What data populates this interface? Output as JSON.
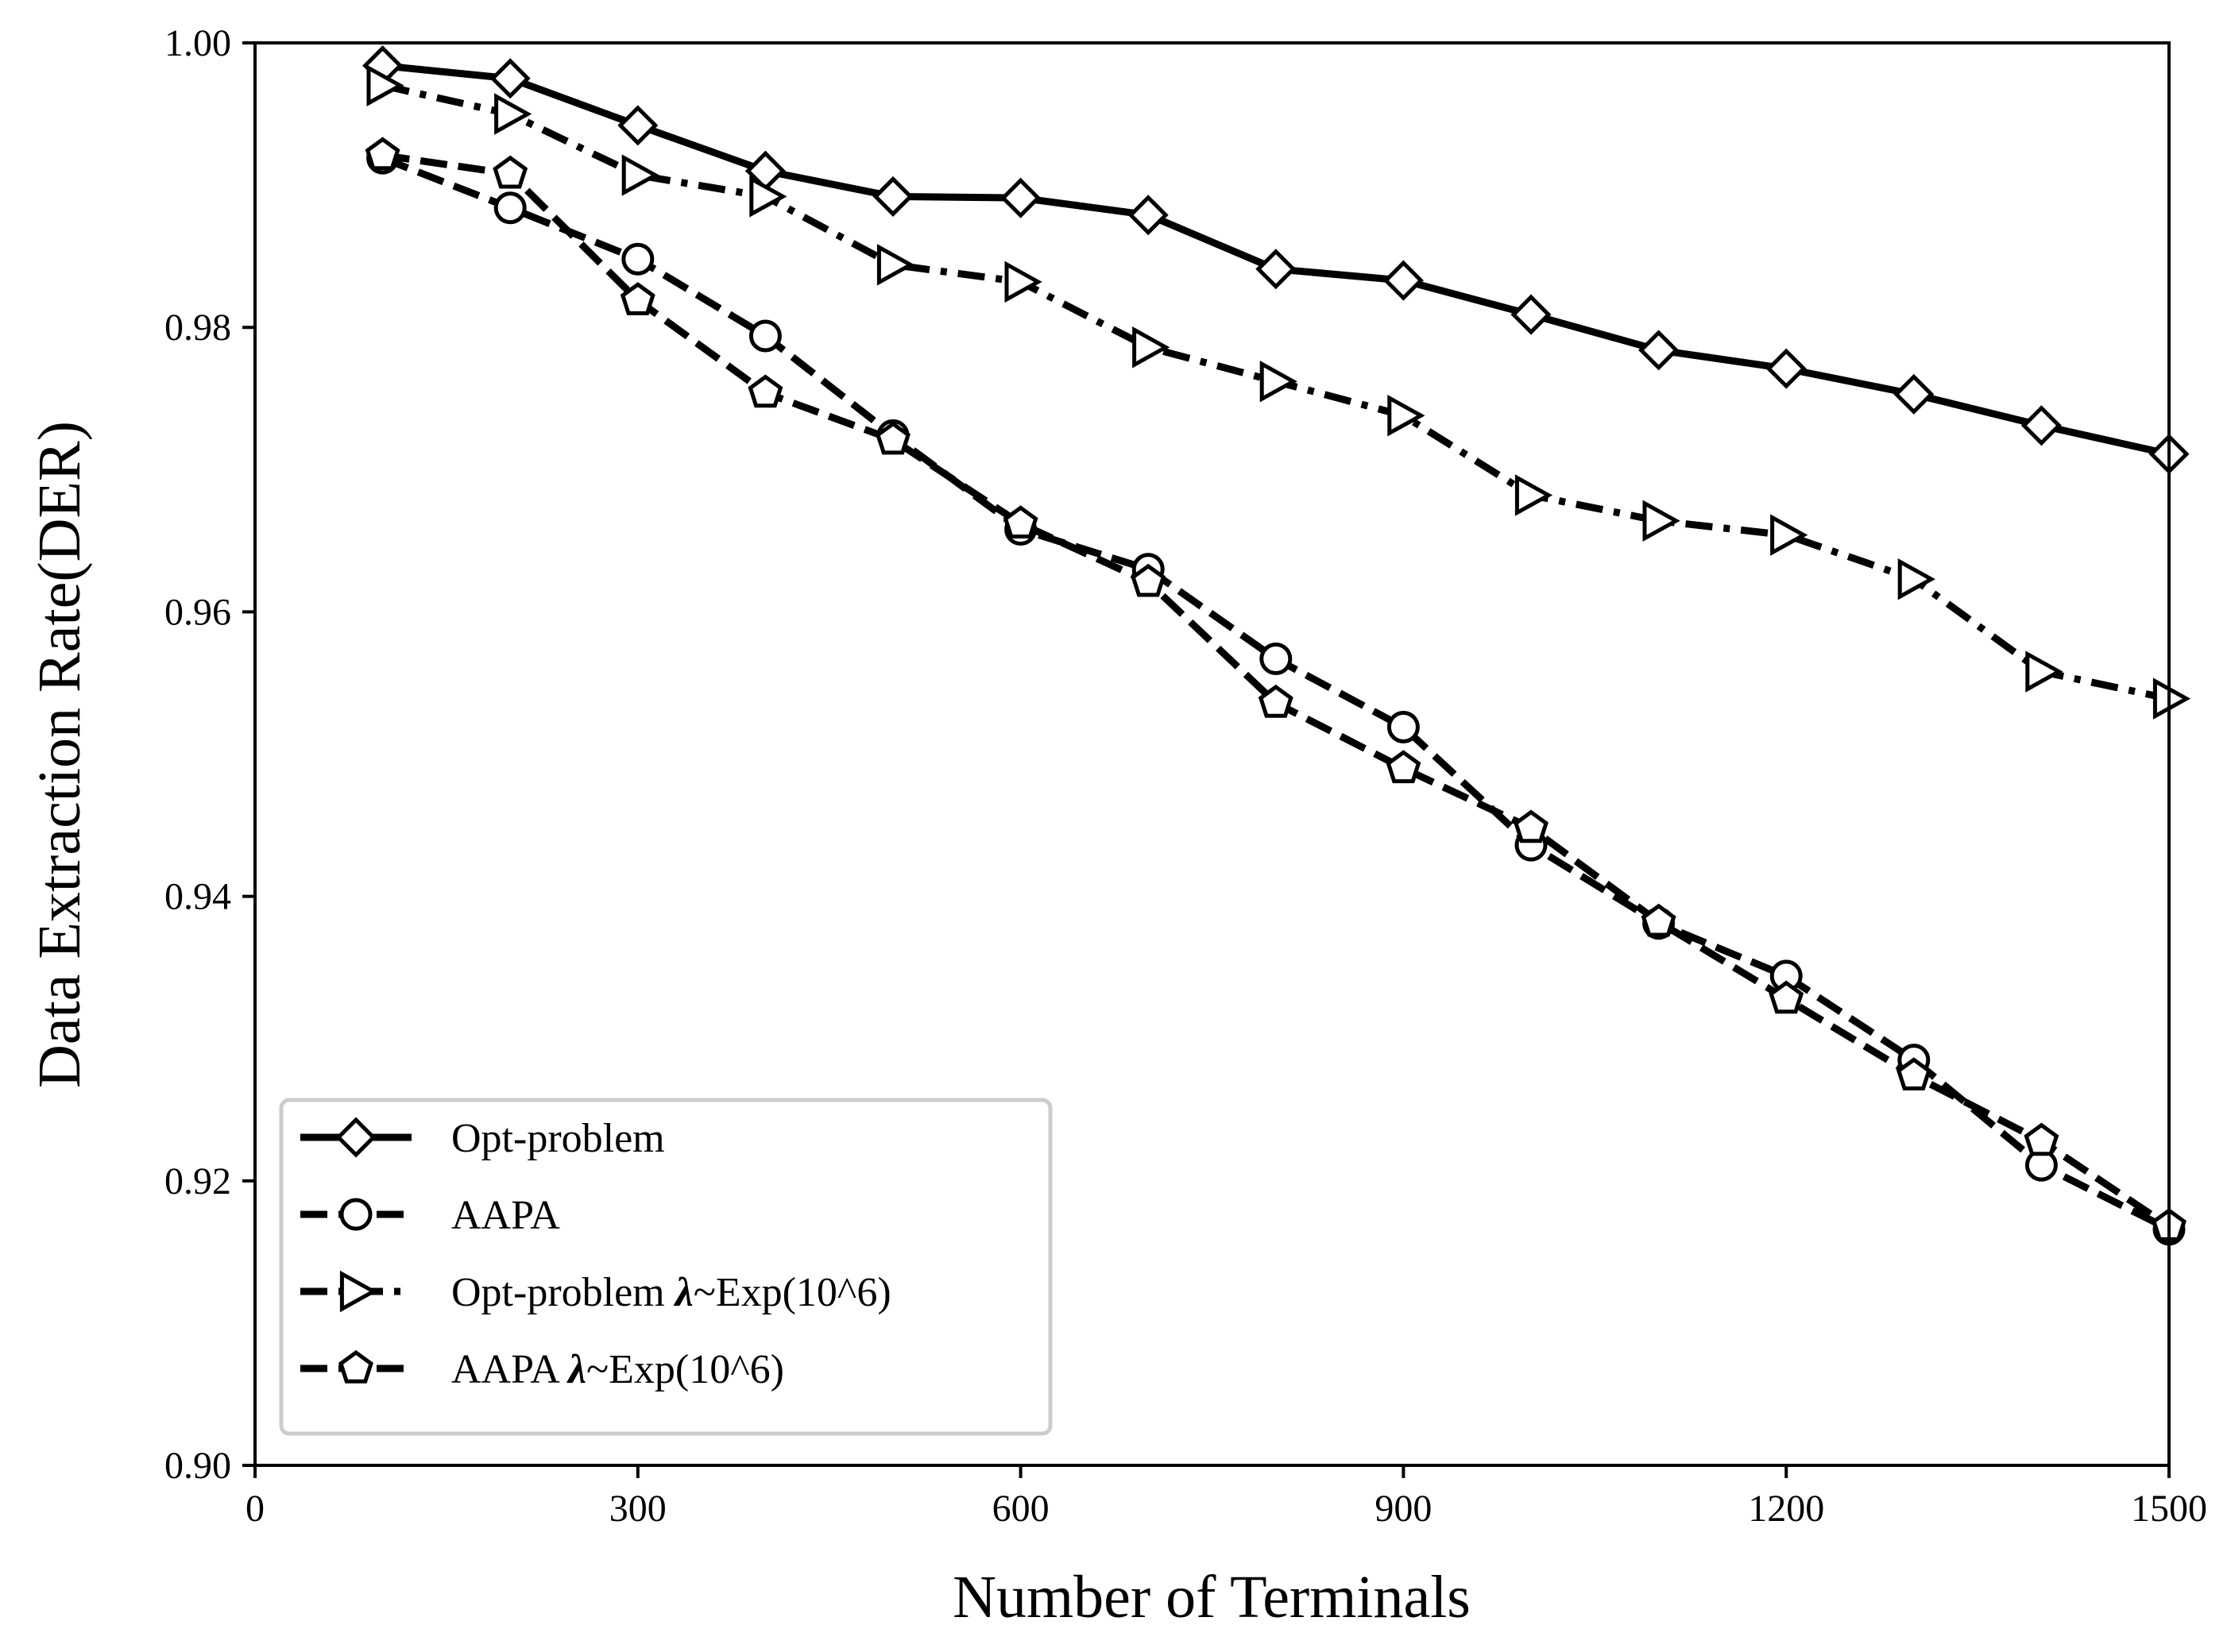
{
  "chart_data": {
    "type": "line",
    "title": "",
    "xlabel": "Number of Terminals",
    "ylabel": "Data Extraction Rate(DER)",
    "xlim": [
      0,
      1500
    ],
    "ylim": [
      0.9,
      1.0
    ],
    "xticks": [
      0,
      300,
      600,
      900,
      1200,
      1500
    ],
    "xtick_labels": [
      "0",
      "300",
      "600",
      "900",
      "1200",
      "1500"
    ],
    "yticks": [
      0.9,
      0.92,
      0.94,
      0.96,
      0.98,
      1.0
    ],
    "ytick_labels": [
      "0.90",
      "0.92",
      "0.94",
      "0.96",
      "0.98",
      "1.00"
    ],
    "grid": false,
    "legend_position": "lower-left",
    "x": [
      100,
      200,
      300,
      400,
      500,
      600,
      700,
      800,
      900,
      1000,
      1100,
      1200,
      1300,
      1400,
      1500
    ],
    "series": [
      {
        "name": "Opt-problem",
        "label_main": "Opt-problem",
        "label_lambda": "",
        "label_tail": "",
        "marker": "diamond",
        "linestyle": "solid",
        "values": [
          0.9984,
          0.9975,
          0.9942,
          0.991,
          0.9892,
          0.9891,
          0.9879,
          0.9841,
          0.9833,
          0.9809,
          0.9784,
          0.9771,
          0.9753,
          0.9731,
          0.9711
        ]
      },
      {
        "name": "AAPA",
        "label_main": "AAPA",
        "label_lambda": "",
        "label_tail": "",
        "marker": "circle",
        "linestyle": "dashed",
        "values": [
          0.9919,
          0.9884,
          0.9848,
          0.9794,
          0.9724,
          0.9658,
          0.963,
          0.9567,
          0.9519,
          0.9436,
          0.9381,
          0.9344,
          0.9285,
          0.9211,
          0.9166
        ]
      },
      {
        "name": "Opt-problem λ~Exp(10^6)",
        "label_main": "Opt-problem ",
        "label_lambda": "λ",
        "label_tail": "~Exp(10^6)",
        "marker": "triangle-right",
        "linestyle": "dashdot",
        "values": [
          0.997,
          0.995,
          0.9907,
          0.9892,
          0.9844,
          0.9832,
          0.9786,
          0.9762,
          0.9738,
          0.9682,
          0.9664,
          0.9654,
          0.9623,
          0.9558,
          0.9539
        ]
      },
      {
        "name": "AAPA λ~Exp(10^6)",
        "label_main": "AAPA ",
        "label_lambda": "λ",
        "label_tail": "~Exp(10^6)",
        "marker": "pentagon",
        "linestyle": "dashed",
        "values": [
          0.9921,
          0.9908,
          0.9819,
          0.9754,
          0.9721,
          0.9662,
          0.9621,
          0.9536,
          0.949,
          0.9448,
          0.9382,
          0.9328,
          0.9274,
          0.9228,
          0.9168
        ]
      }
    ]
  }
}
